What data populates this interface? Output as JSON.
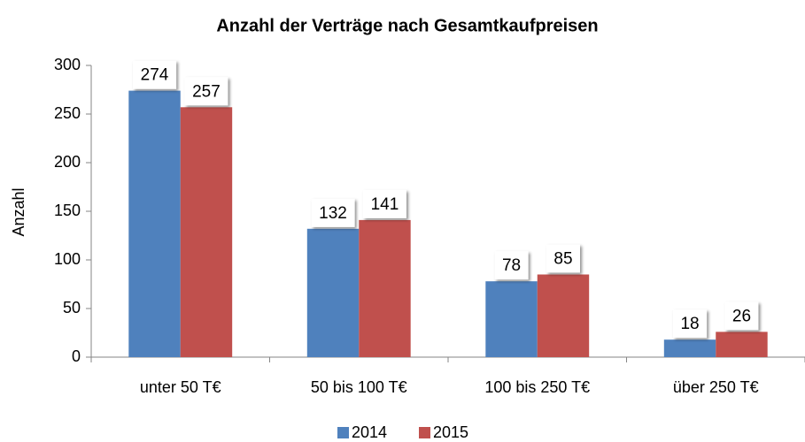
{
  "chart_data": {
    "type": "bar",
    "title": "Anzahl der Verträge nach Gesamtkaufpreisen",
    "y_label": "Anzahl",
    "categories": [
      "unter 50 T€",
      "50 bis 100 T€",
      "100 bis 250 T€",
      "über 250 T€"
    ],
    "series": [
      {
        "name": "2014",
        "color": "#4f81bd",
        "values": [
          274,
          132,
          78,
          18
        ]
      },
      {
        "name": "2015",
        "color": "#c0504d",
        "values": [
          257,
          141,
          85,
          26
        ]
      }
    ],
    "ylim": [
      0,
      300
    ],
    "yticks": [
      0,
      50,
      100,
      150,
      200,
      250,
      300
    ],
    "grid": false,
    "legend": "bottom"
  }
}
